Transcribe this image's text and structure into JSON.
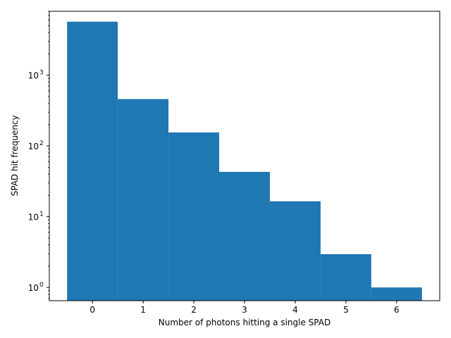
{
  "chart_data": {
    "type": "bar",
    "title": "",
    "xlabel": "Number of photons hitting a single SPAD",
    "ylabel": "SPAD hit frequency",
    "yscale": "log",
    "categories": [
      "0",
      "1",
      "2",
      "3",
      "4",
      "5",
      "6"
    ],
    "x": [
      0,
      1,
      2,
      3,
      4,
      5,
      6
    ],
    "values": [
      5700,
      460,
      155,
      43,
      16.5,
      2.95,
      1
    ],
    "bar_width": 1,
    "xlim": [
      -0.85,
      6.85
    ],
    "ylim": [
      0.65,
      8000
    ],
    "xticks": [
      {
        "value": 0,
        "label": "0"
      },
      {
        "value": 1,
        "label": "1"
      },
      {
        "value": 2,
        "label": "2"
      },
      {
        "value": 3,
        "label": "3"
      },
      {
        "value": 4,
        "label": "4"
      },
      {
        "value": 5,
        "label": "5"
      },
      {
        "value": 6,
        "label": "6"
      }
    ],
    "yticks": [
      {
        "value": 1,
        "base": "10",
        "exp": "0"
      },
      {
        "value": 10,
        "base": "10",
        "exp": "1"
      },
      {
        "value": 100,
        "base": "10",
        "exp": "2"
      },
      {
        "value": 1000,
        "base": "10",
        "exp": "3"
      }
    ],
    "bar_color": "#1f77b4",
    "grid": false,
    "legend": "none"
  }
}
